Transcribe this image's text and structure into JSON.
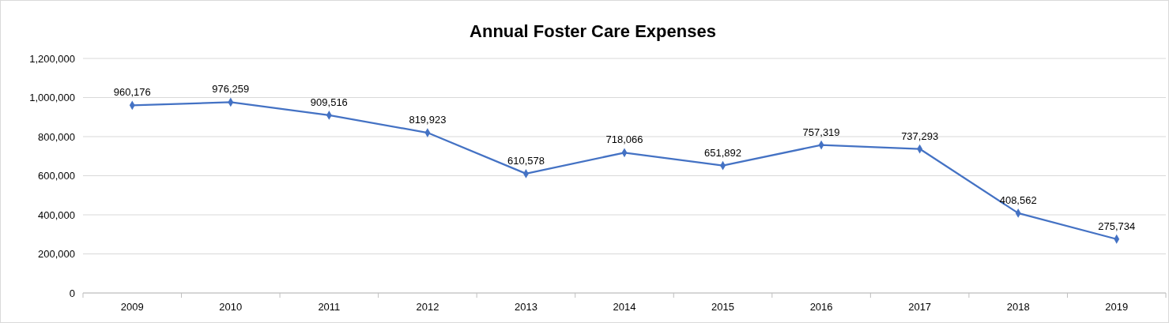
{
  "chart_data": {
    "type": "line",
    "title": "Annual Foster Care Expenses",
    "categories": [
      "2009",
      "2010",
      "2011",
      "2012",
      "2013",
      "2014",
      "2015",
      "2016",
      "2017",
      "2018",
      "2019"
    ],
    "series": [
      {
        "color": "#4472c4",
        "values": [
          960176,
          976259,
          909516,
          819923,
          610578,
          718066,
          651892,
          757319,
          737293,
          408562,
          275734
        ],
        "value_labels": [
          "960,176",
          "976,259",
          "909,516",
          "819,923",
          "610,578",
          "718,066",
          "651,892",
          "757,319",
          "737,293",
          "408,562",
          "275,734"
        ]
      }
    ],
    "ylim": [
      0,
      1200000
    ],
    "yticks": [
      {
        "value": 0,
        "label": "0"
      },
      {
        "value": 200000,
        "label": "200,000"
      },
      {
        "value": 400000,
        "label": "400,000"
      },
      {
        "value": 600000,
        "label": "600,000"
      },
      {
        "value": 800000,
        "label": "800,000"
      },
      {
        "value": 1000000,
        "label": "1,000,000"
      },
      {
        "value": 1200000,
        "label": "1,200,000"
      }
    ],
    "grid": "y",
    "marker": "diamond",
    "line_style": "solid"
  }
}
